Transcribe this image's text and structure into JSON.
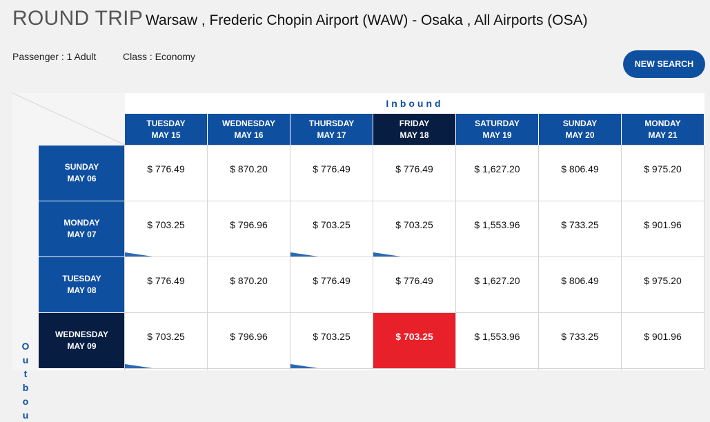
{
  "header": {
    "trip_type": "ROUND TRIP",
    "route": "Warsaw , Frederic Chopin Airport (WAW) - Osaka , All Airports (OSA)",
    "passenger": "Passenger : 1 Adult",
    "class": "Class : Economy",
    "new_search": "NEW SEARCH"
  },
  "grid": {
    "inbound_label": "Inbound",
    "outbound_label_visible": [
      "O",
      "u",
      "t",
      "b",
      "o",
      "u"
    ],
    "inbound_days": [
      {
        "day": "TUESDAY",
        "date": "MAY 15"
      },
      {
        "day": "WEDNESDAY",
        "date": "MAY 16"
      },
      {
        "day": "THURSDAY",
        "date": "MAY 17"
      },
      {
        "day": "FRIDAY",
        "date": "MAY 18"
      },
      {
        "day": "SATURDAY",
        "date": "MAY 19"
      },
      {
        "day": "SUNDAY",
        "date": "MAY 20"
      },
      {
        "day": "MONDAY",
        "date": "MAY 21"
      }
    ],
    "selected_inbound_index": 3,
    "outbound_days": [
      {
        "day": "SUNDAY",
        "date": "MAY 06"
      },
      {
        "day": "MONDAY",
        "date": "MAY 07"
      },
      {
        "day": "TUESDAY",
        "date": "MAY 08"
      },
      {
        "day": "WEDNESDAY",
        "date": "MAY 09"
      }
    ],
    "selected_outbound_index": 3,
    "prices": [
      [
        "$ 776.49",
        "$ 870.20",
        "$ 776.49",
        "$ 776.49",
        "$ 1,627.20",
        "$ 806.49",
        "$ 975.20"
      ],
      [
        "$ 703.25",
        "$ 796.96",
        "$ 703.25",
        "$ 703.25",
        "$ 1,553.96",
        "$ 733.25",
        "$ 901.96"
      ],
      [
        "$ 776.49",
        "$ 870.20",
        "$ 776.49",
        "$ 776.49",
        "$ 1,627.20",
        "$ 806.49",
        "$ 975.20"
      ],
      [
        "$ 703.25",
        "$ 796.96",
        "$ 703.25",
        "$ 703.25",
        "$ 1,553.96",
        "$ 733.25",
        "$ 901.96"
      ]
    ],
    "lowest_fare_markers": [
      [
        false,
        false,
        false,
        false,
        false,
        false,
        false
      ],
      [
        true,
        false,
        true,
        true,
        false,
        false,
        false
      ],
      [
        false,
        false,
        false,
        false,
        false,
        false,
        false
      ],
      [
        true,
        false,
        true,
        false,
        false,
        false,
        false
      ]
    ],
    "colors": {
      "primary": "#0f4fa0",
      "selected_header": "#071d41",
      "selected_cell": "#e8202a",
      "marker": "#2a68b5"
    }
  }
}
